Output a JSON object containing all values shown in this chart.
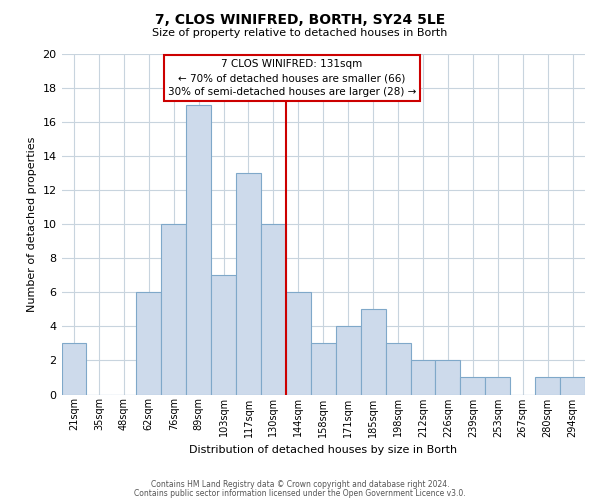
{
  "title": "7, CLOS WINIFRED, BORTH, SY24 5LE",
  "subtitle": "Size of property relative to detached houses in Borth",
  "xlabel": "Distribution of detached houses by size in Borth",
  "ylabel": "Number of detached properties",
  "bar_labels": [
    "21sqm",
    "35sqm",
    "48sqm",
    "62sqm",
    "76sqm",
    "89sqm",
    "103sqm",
    "117sqm",
    "130sqm",
    "144sqm",
    "158sqm",
    "171sqm",
    "185sqm",
    "198sqm",
    "212sqm",
    "226sqm",
    "239sqm",
    "253sqm",
    "267sqm",
    "280sqm",
    "294sqm"
  ],
  "bar_values": [
    3,
    0,
    0,
    6,
    10,
    17,
    7,
    13,
    10,
    6,
    3,
    4,
    5,
    3,
    2,
    2,
    1,
    1,
    0,
    1,
    1
  ],
  "bar_color": "#cddaeb",
  "bar_edgecolor": "#7fa8c9",
  "vline_color": "#cc0000",
  "ylim": [
    0,
    20
  ],
  "yticks": [
    0,
    2,
    4,
    6,
    8,
    10,
    12,
    14,
    16,
    18,
    20
  ],
  "annotation_title": "7 CLOS WINIFRED: 131sqm",
  "annotation_line1": "← 70% of detached houses are smaller (66)",
  "annotation_line2": "30% of semi-detached houses are larger (28) →",
  "footer_line1": "Contains HM Land Registry data © Crown copyright and database right 2024.",
  "footer_line2": "Contains public sector information licensed under the Open Government Licence v3.0.",
  "background_color": "#ffffff",
  "grid_color": "#c8d4de"
}
